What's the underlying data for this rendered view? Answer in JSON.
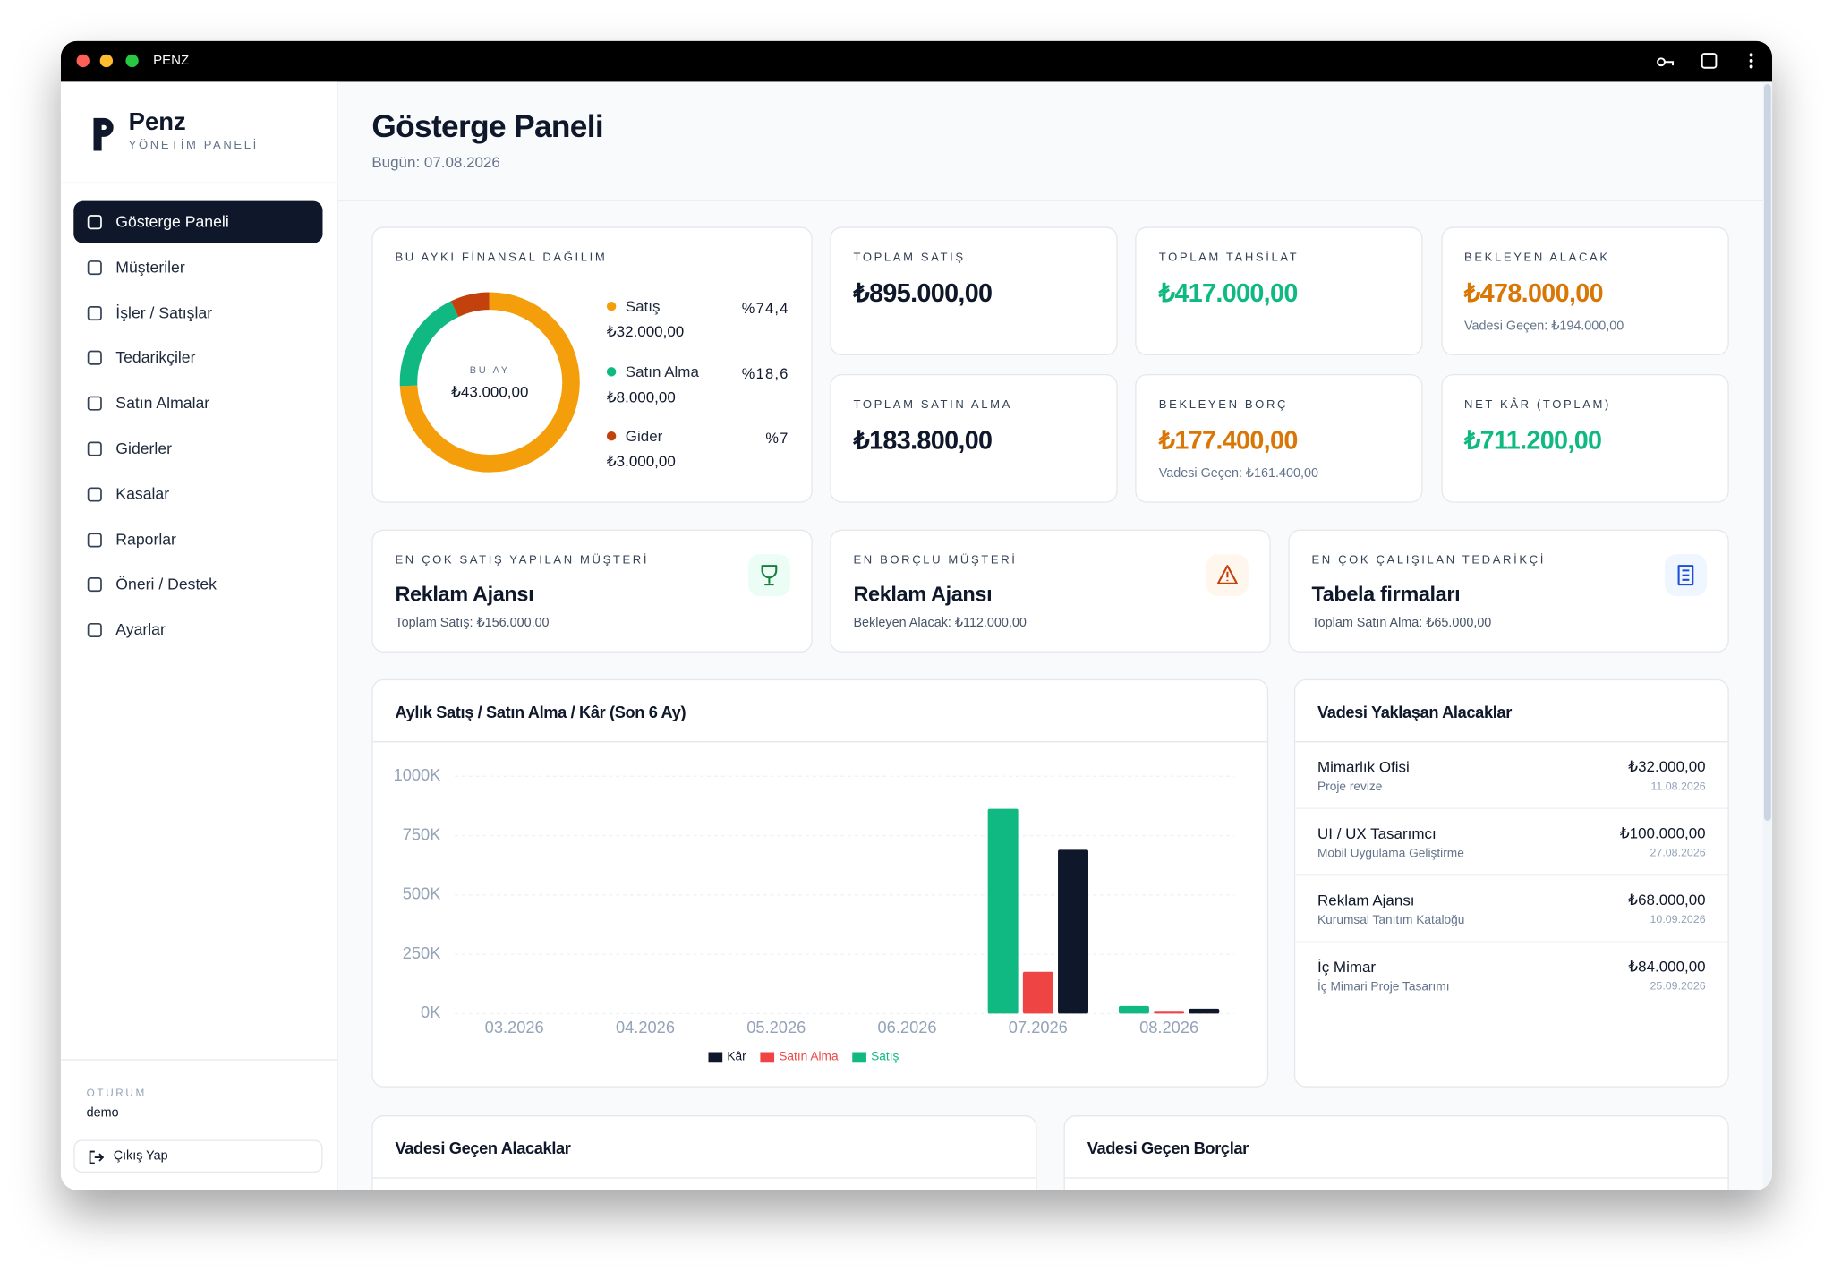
{
  "window": {
    "title": "PENZ"
  },
  "brand": {
    "name": "Penz",
    "subtitle": "YÖNETİM PANELİ"
  },
  "nav": [
    "Gösterge Paneli",
    "Müşteriler",
    "İşler / Satışlar",
    "Tedarikçiler",
    "Satın Almalar",
    "Giderler",
    "Kasalar",
    "Raporlar",
    "Öneri / Destek",
    "Ayarlar"
  ],
  "session": {
    "label": "OTURUM",
    "user": "demo",
    "logout": "Çıkış Yap"
  },
  "header": {
    "title": "Gösterge Paneli",
    "date": "Bugün: 07.08.2026"
  },
  "distribution": {
    "type": "pie",
    "title": "BU AYKI FİNANSAL DAĞILIM",
    "center_label": "BU AY",
    "center_value": "₺43.000,00",
    "categories": [
      "Satış",
      "Satın Alma",
      "Gider"
    ],
    "values": [
      74.4,
      18.6,
      7
    ],
    "value_labels": [
      "%74,4",
      "%18,6",
      "%7"
    ],
    "amounts": [
      "₺32.000,00",
      "₺8.000,00",
      "₺3.000,00"
    ],
    "colors": [
      "#f59e0b",
      "#10b981",
      "#c2410c"
    ]
  },
  "stats": [
    {
      "label": "TOPLAM SATIŞ",
      "value": "₺895.000,00",
      "color": "#0f172a"
    },
    {
      "label": "TOPLAM TAHSİLAT",
      "value": "₺417.000,00",
      "color": "#10b981"
    },
    {
      "label": "BEKLEYEN ALACAK",
      "value": "₺478.000,00",
      "color": "#d97706",
      "note": "Vadesi Geçen: ₺194.000,00"
    },
    {
      "label": "TOPLAM SATIN ALMA",
      "value": "₺183.800,00",
      "color": "#0f172a"
    },
    {
      "label": "BEKLEYEN BORÇ",
      "value": "₺177.400,00",
      "color": "#d97706",
      "note": "Vadesi Geçen: ₺161.400,00"
    },
    {
      "label": "NET KÂR (TOPLAM)",
      "value": "₺711.200,00",
      "color": "#10b981"
    }
  ],
  "highlights": [
    {
      "label": "EN ÇOK SATIŞ YAPILAN MÜŞTERİ",
      "name": "Reklam Ajansı",
      "detail": "Toplam Satış: ₺156.000,00",
      "color": "#15803d",
      "bg": "#ecfdf5"
    },
    {
      "label": "EN BORÇLU MÜŞTERİ",
      "name": "Reklam Ajansı",
      "detail": "Bekleyen Alacak: ₺112.000,00",
      "color": "#c2410c",
      "bg": "#fff7ed"
    },
    {
      "label": "EN ÇOK ÇALIŞILAN TEDARİKÇİ",
      "name": "Tabela firmaları",
      "detail": "Toplam Satın Alma: ₺65.000,00",
      "color": "#1d4ed8",
      "bg": "#eff6ff"
    }
  ],
  "chart": {
    "type": "bar",
    "title": "Aylık Satış / Satın Alma / Kâr (Son 6 Ay)",
    "categories": [
      "03.2026",
      "04.2026",
      "05.2026",
      "06.2026",
      "07.2026",
      "08.2026"
    ],
    "series": [
      {
        "name": "Kâr",
        "color": "#0f172a",
        "values": [
          0,
          0,
          0,
          0,
          690200,
          21000
        ]
      },
      {
        "name": "Satın Alma",
        "color": "#ef4444",
        "values": [
          0,
          0,
          0,
          0,
          175800,
          8000
        ]
      },
      {
        "name": "Satış",
        "color": "#10b981",
        "values": [
          0,
          0,
          0,
          0,
          863000,
          32000
        ]
      }
    ],
    "ylim": [
      0,
      1000000
    ],
    "yticks": [
      {
        "value": 0,
        "label": "0K"
      },
      {
        "value": 250000,
        "label": "250K"
      },
      {
        "value": 500000,
        "label": "500K"
      },
      {
        "value": 750000,
        "label": "750K"
      },
      {
        "value": 1000000,
        "label": "1000K"
      }
    ],
    "grid": true
  },
  "upcoming": {
    "title": "Vadesi Yaklaşan Alacaklar",
    "rows": [
      {
        "name": "Mimarlık Ofisi",
        "desc": "Proje revize",
        "amount": "₺32.000,00",
        "date": "11.08.2026"
      },
      {
        "name": "UI / UX Tasarımcı",
        "desc": "Mobil Uygulama Geliştirme",
        "amount": "₺100.000,00",
        "date": "27.08.2026"
      },
      {
        "name": "Reklam Ajansı",
        "desc": "Kurumsal Tanıtım Kataloğu",
        "amount": "₺68.000,00",
        "date": "10.09.2026"
      },
      {
        "name": "İç Mimar",
        "desc": "İç Mimari Proje Tasarımı",
        "amount": "₺84.000,00",
        "date": "25.09.2026"
      }
    ]
  },
  "overdue_receivables": {
    "title": "Vadesi Geçen Alacaklar"
  },
  "overdue_payables": {
    "title": "Vadesi Geçen Borçlar"
  }
}
